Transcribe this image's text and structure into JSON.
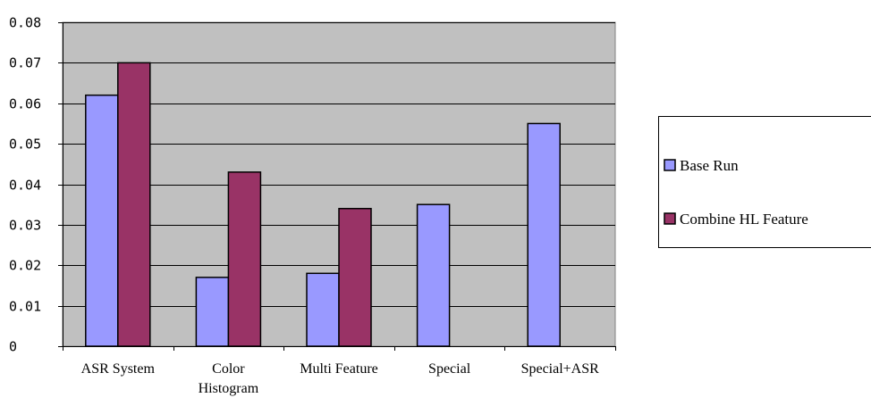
{
  "chart_data": {
    "type": "bar",
    "categories": [
      [
        "ASR System"
      ],
      [
        "Color",
        "Histogram"
      ],
      [
        "Multi Feature"
      ],
      [
        "Special"
      ],
      [
        "Special+ASR"
      ]
    ],
    "series": [
      {
        "name": "Base Run",
        "values": [
          0.062,
          0.017,
          0.018,
          0.035,
          0.055
        ],
        "color": "#9999ff"
      },
      {
        "name": "Combine HL Feature",
        "values": [
          0.07,
          0.043,
          0.034,
          null,
          null
        ],
        "color": "#993366"
      }
    ],
    "yticks": [
      "0",
      "0.01",
      "0.02",
      "0.03",
      "0.04",
      "0.05",
      "0.06",
      "0.07",
      "0.08"
    ],
    "ylim": [
      0,
      0.08
    ],
    "grid": true,
    "plot_background": "#c0c0c0",
    "legend_position": "right",
    "title": "",
    "xlabel": "",
    "ylabel": ""
  }
}
